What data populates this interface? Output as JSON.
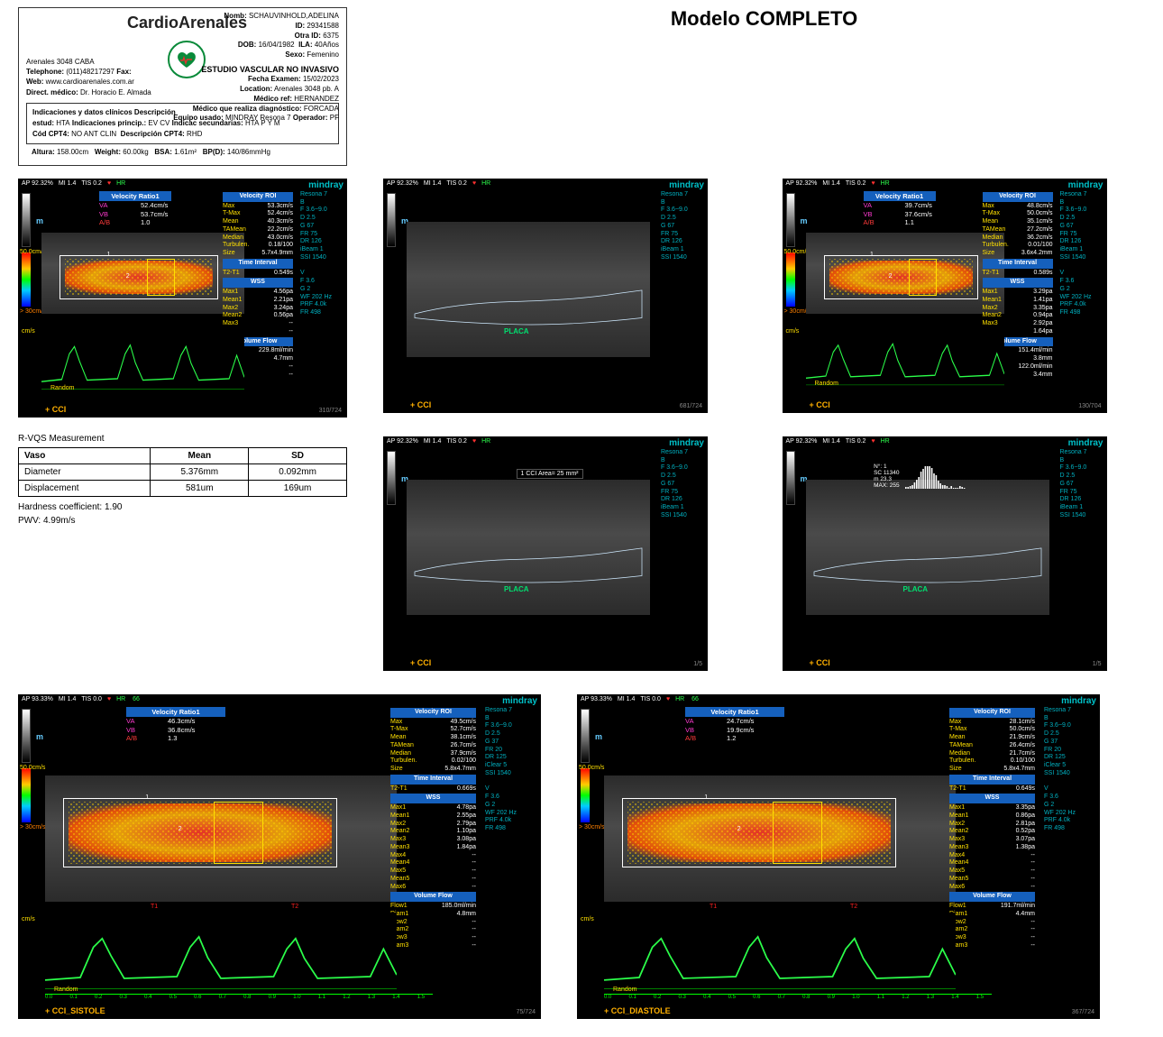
{
  "page": {
    "model_title": "Modelo COMPLETO",
    "bg": "#ffffff"
  },
  "clinic": {
    "brand": "CardioArenales",
    "address": "Arenales 3048 CABA",
    "telephone_label": "Telephone:",
    "telephone": "(011)48217297",
    "fax_label": "Fax:",
    "web_label": "Web:",
    "web": "www.cardioarenales.com.ar",
    "director_label": "Direct. médico:",
    "director": "Dr. Horacio E. Almada",
    "logo_color": "#0a8a3a"
  },
  "patient": {
    "nomb_label": "Nomb:",
    "nomb": "SCHAUVINHOLD,ADELINA",
    "id_label": "ID:",
    "id": "29341588",
    "otra_id_label": "Otra ID:",
    "otra_id": "6375",
    "dob_label": "DOB:",
    "dob": "16/04/1982",
    "ila_label": "ILA:",
    "ila": "40Años",
    "sexo_label": "Sexo:",
    "sexo": "Femenino"
  },
  "study": {
    "title": "ESTUDIO VASCULAR NO INVASIVO",
    "fecha_label": "Fecha Examen:",
    "fecha": "15/02/2023",
    "location_label": "Location:",
    "location": "Arenales 3048 pb. A",
    "medico_ref_label": "Médico ref:",
    "medico_ref": "HERNANDEZ",
    "tech_label": "Médico que realiza diagnóstico:",
    "tech": "FORCADA",
    "equipo_label": "Equipo usado:",
    "equipo": "MINDRAY Resona 7",
    "operador_label": "Operador:",
    "operador": "PF"
  },
  "clinbox": {
    "header": "Indicaciones y datos clínicos Descripción",
    "l1a": "estud:",
    "l1b": "HTA",
    "l1c": "Indicaciones princip.:",
    "l1d": "EV CV",
    "l1e": "Indicac secundarias:",
    "l1f": "HTA P Y M",
    "l2a": "Cód CPT4:",
    "l2b": "NO ANT CLIN",
    "l2c": "Descripción CPT4:",
    "l2d": "RHD"
  },
  "vitals": {
    "altura_label": "Altura:",
    "altura": "158.00cm",
    "weight_label": "Weight:",
    "weight": "60.00kg",
    "bsa_label": "BSA:",
    "bsa": "1.61m²",
    "bp_label": "BP(D):",
    "bp": "140/86mmHg"
  },
  "rvqs": {
    "title": "R-VQS Measurement",
    "cols": [
      "Vaso",
      "Mean",
      "SD"
    ],
    "rows": [
      [
        "Diameter",
        "5.376mm",
        "0.092mm"
      ],
      [
        "Displacement",
        "581um",
        "169um"
      ]
    ],
    "hardness_label": "Hardness coefficient:",
    "hardness": "1.90",
    "pwv_label": "PWV:",
    "pwv": "4.99m/s"
  },
  "us_common": {
    "ap": "AP 92.32%",
    "mi": "MI 1.4",
    "tis": "TIS 0.2",
    "hr": "HR",
    "hr_big": "66",
    "brand": "mindray",
    "info": [
      "Resona 7",
      "B",
      "F 3.6~9.0",
      "D 2.5",
      "G 67",
      "FR 75",
      "DR 126",
      "iBeam 1",
      "SSI 1540",
      "",
      "V",
      "F 3.6",
      "G 2",
      "WF 202 Hz",
      "PRF 4.0k",
      "FR 498"
    ],
    "scale_top": "50.0cm/s",
    "scale_bot": "> 30cm/s",
    "cm_tick": "cm/s",
    "random": "Random"
  },
  "panel_left_small": {
    "vessel": "CCI",
    "ticks": "310/724",
    "vratio": {
      "hdr": "Velocity Ratio1",
      "VA": "52.4cm/s",
      "VB": "53.7cm/s",
      "AB": "1.0"
    },
    "roi": {
      "hdr": "Velocity ROI",
      "Max": "53.3cm/s",
      "T-Max": "52.4cm/s",
      "Mean": "40.3cm/s",
      "TAMean": "22.2cm/s",
      "Median": "43.0cm/s",
      "Turbulen.": "0.18/100",
      "Size": "5.7x4.9mm"
    },
    "ti": {
      "hdr": "Time Interval",
      "T2-T1": "0.549s"
    },
    "wss": {
      "hdr": "WSS",
      "Max1": "4.56pa",
      "Mean1": "2.21pa",
      "Max2": "3.24pa",
      "Mean2": "0.56pa",
      "Max3": "--",
      "Mean3": "--"
    },
    "vf": {
      "hdr": "Volume Flow",
      "Flow1": "229.8ml/min",
      "Diam1": "4.7mm",
      "Flow2": "--",
      "Diam2": "--"
    }
  },
  "panel_r1c1": {
    "vessel": "CCI",
    "ticks": "681/724",
    "placa": "PLACA"
  },
  "panel_r1c2": {
    "vessel": "CCI",
    "ticks": "130/704",
    "vratio": {
      "hdr": "Velocity Ratio1",
      "VA": "39.7cm/s",
      "VB": "37.6cm/s",
      "AB": "1.1"
    },
    "roi": {
      "hdr": "Velocity ROI",
      "Max": "48.8cm/s",
      "T-Max": "50.0cm/s",
      "Mean": "35.1cm/s",
      "TAMean": "27.2cm/s",
      "Median": "36.2cm/s",
      "Turbulen.": "0.01/100",
      "Size": "3.6x4.2mm"
    },
    "ti": {
      "hdr": "Time Interval",
      "T2-T1": "0.589s"
    },
    "wss": {
      "hdr": "WSS",
      "Max1": "3.29pa",
      "Mean1": "1.41pa",
      "Max2": "3.35pa",
      "Mean2": "0.94pa",
      "Max3": "2.92pa",
      "Mean3": "1.64pa"
    },
    "vf": {
      "hdr": "Volume Flow",
      "Flow1": "151.4ml/min",
      "Diam1": "3.8mm",
      "Flow2": "122.0ml/min",
      "Diam2": "3.4mm"
    }
  },
  "panel_r2c1": {
    "vessel": "CCI",
    "ticks": "1/5",
    "placa": "PLACA",
    "annot": "1 CCI Area=  25 mm²"
  },
  "panel_r2c2": {
    "vessel": "CCI",
    "ticks": "1/5",
    "placa": "PLACA",
    "hist": {
      "n": "N°: 1",
      "sc": "SC 11340",
      "m": "m 23.3",
      "max": "MAX: 255"
    }
  },
  "panel_big_left": {
    "ap": "AP 93.33%",
    "mi": "MI 1.4",
    "tis": "TIS 0.0",
    "vessel": "CCI_SISTOLE",
    "ticks": "75/724",
    "vratio": {
      "hdr": "Velocity Ratio1",
      "VA": "46.3cm/s",
      "VB": "36.8cm/s",
      "AB": "1.3"
    },
    "roi": {
      "hdr": "Velocity ROI",
      "Max": "49.5cm/s",
      "T-Max": "52.7cm/s",
      "Mean": "38.1cm/s",
      "TAMean": "26.7cm/s",
      "Median": "37.9cm/s",
      "Turbulen.": "0.02/100",
      "Size": "5.8x4.7mm"
    },
    "ti": {
      "hdr": "Time Interval",
      "T2-T1": "0.669s"
    },
    "wss": {
      "hdr": "WSS",
      "Max1": "4.78pa",
      "Mean1": "2.55pa",
      "Max2": "2.79pa",
      "Mean2": "1.10pa",
      "Max3": "3.08pa",
      "Mean3": "1.84pa",
      "Max4": "--",
      "Mean4": "--",
      "Max5": "--",
      "Mean5": "--",
      "Max6": "--"
    },
    "vf": {
      "hdr": "Volume Flow",
      "Flow1": "185.0ml/min",
      "Diam1": "4.8mm",
      "Flow2": "--",
      "Diam2": "--",
      "Flow3": "--",
      "Diam3": "--"
    },
    "info": [
      "Resona 7",
      "B",
      "F 3.6~9.0",
      "D 2.5",
      "G 37",
      "FR 20",
      "DR 125",
      "iClear 5",
      "SSI 1540",
      "",
      "V",
      "F 3.6",
      "G 2",
      "WF 202 Hz",
      "PRF 4.0k",
      "FR 498"
    ]
  },
  "panel_big_right": {
    "ap": "AP 93.33%",
    "mi": "MI 1.4",
    "tis": "TIS 0.0",
    "vessel": "CCI_DIASTOLE",
    "ticks": "367/724",
    "vratio": {
      "hdr": "Velocity Ratio1",
      "VA": "24.7cm/s",
      "VB": "19.9cm/s",
      "AB": "1.2"
    },
    "roi": {
      "hdr": "Velocity ROI",
      "Max": "28.1cm/s",
      "T-Max": "50.0cm/s",
      "Mean": "21.9cm/s",
      "TAMean": "26.4cm/s",
      "Median": "21.7cm/s",
      "Turbulen.": "0.10/100",
      "Size": "5.8x4.7mm"
    },
    "ti": {
      "hdr": "Time Interval",
      "T2-T1": "0.649s"
    },
    "wss": {
      "hdr": "WSS",
      "Max1": "3.35pa",
      "Mean1": "0.86pa",
      "Max2": "2.81pa",
      "Mean2": "0.52pa",
      "Max3": "3.07pa",
      "Mean3": "1.38pa",
      "Max4": "--",
      "Mean4": "--",
      "Max5": "--",
      "Mean5": "--",
      "Max6": "--"
    },
    "vf": {
      "hdr": "Volume Flow",
      "Flow1": "191.7ml/min",
      "Diam1": "4.4mm",
      "Flow2": "--",
      "Diam2": "--",
      "Flow3": "--",
      "Diam3": "--"
    },
    "info": [
      "Resona 7",
      "B",
      "F 3.6~9.0",
      "D 2.5",
      "G 37",
      "FR 20",
      "DR 125",
      "iClear 5",
      "SSI 1540",
      "",
      "V",
      "F 3.6",
      "G 2",
      "WF 202 Hz",
      "PRF 4.0k",
      "FR 498"
    ]
  },
  "colors": {
    "mindray": "#00c0c8",
    "sec_hdr": "#1560bd",
    "key": "#ffe000",
    "magenta": "#ff3ad0",
    "red": "#ff3a3a",
    "green_wave": "#2bff4a",
    "vessel": "#ffb000",
    "placa": "#00e070"
  }
}
